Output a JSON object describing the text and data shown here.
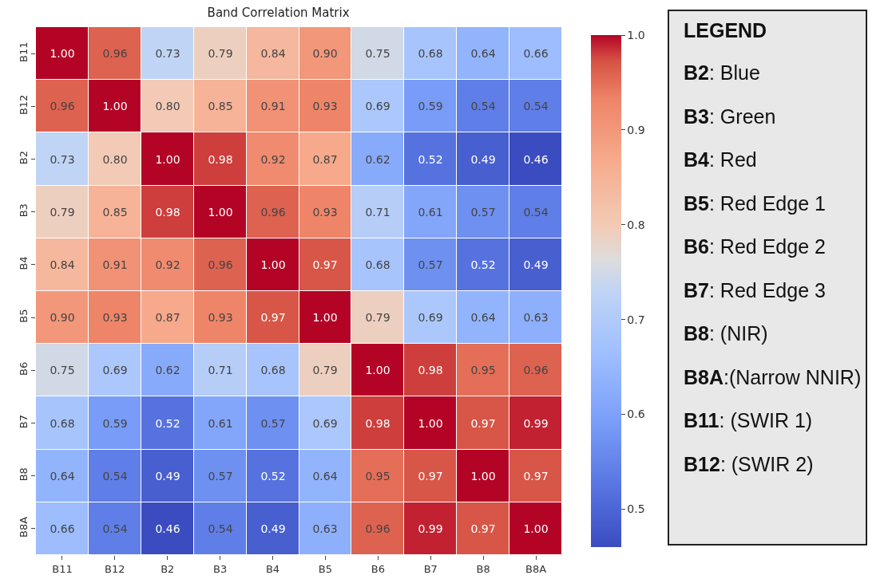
{
  "chart_data": [
    {
      "type": "heatmap",
      "title": "Band Correlation Matrix",
      "categories": [
        "B11",
        "B12",
        "B2",
        "B3",
        "B4",
        "B5",
        "B6",
        "B7",
        "B8",
        "B8A"
      ],
      "y_categories": [
        "B11",
        "B12",
        "B2",
        "B3",
        "B4",
        "B5",
        "B6",
        "B7",
        "B8",
        "B8A"
      ],
      "cells": [
        [
          1.0,
          0.96,
          0.73,
          0.79,
          0.84,
          0.9,
          0.75,
          0.68,
          0.64,
          0.66
        ],
        [
          0.96,
          1.0,
          0.8,
          0.85,
          0.91,
          0.93,
          0.69,
          0.59,
          0.54,
          0.54
        ],
        [
          0.73,
          0.8,
          1.0,
          0.98,
          0.92,
          0.87,
          0.62,
          0.52,
          0.49,
          0.46
        ],
        [
          0.79,
          0.85,
          0.98,
          1.0,
          0.96,
          0.93,
          0.71,
          0.61,
          0.57,
          0.54
        ],
        [
          0.84,
          0.91,
          0.92,
          0.96,
          1.0,
          0.97,
          0.68,
          0.57,
          0.52,
          0.49
        ],
        [
          0.9,
          0.93,
          0.87,
          0.93,
          0.97,
          1.0,
          0.79,
          0.69,
          0.64,
          0.63
        ],
        [
          0.75,
          0.69,
          0.62,
          0.71,
          0.68,
          0.79,
          1.0,
          0.98,
          0.95,
          0.96
        ],
        [
          0.68,
          0.59,
          0.52,
          0.61,
          0.57,
          0.69,
          0.98,
          1.0,
          0.97,
          0.99
        ],
        [
          0.64,
          0.54,
          0.49,
          0.57,
          0.52,
          0.64,
          0.95,
          0.97,
          1.0,
          0.97
        ],
        [
          0.66,
          0.54,
          0.46,
          0.54,
          0.49,
          0.63,
          0.96,
          0.99,
          0.97,
          1.0
        ]
      ],
      "cell_labels": [
        [
          "1.00",
          "0.96",
          "0.73",
          "0.79",
          "0.84",
          "0.90",
          "0.75",
          "0.68",
          "0.64",
          "0.66"
        ],
        [
          "0.96",
          "1.00",
          "0.80",
          "0.85",
          "0.91",
          "0.93",
          "0.69",
          "0.59",
          "0.54",
          "0.54"
        ],
        [
          "0.73",
          "0.80",
          "1.00",
          "0.98",
          "0.92",
          "0.87",
          "0.62",
          "0.52",
          "0.49",
          "0.46"
        ],
        [
          "0.79",
          "0.85",
          "0.98",
          "1.00",
          "0.96",
          "0.93",
          "0.71",
          "0.61",
          "0.57",
          "0.54"
        ],
        [
          "0.84",
          "0.91",
          "0.92",
          "0.96",
          "1.00",
          "0.97",
          "0.68",
          "0.57",
          "0.52",
          "0.49"
        ],
        [
          "0.90",
          "0.93",
          "0.87",
          "0.93",
          "0.97",
          "1.00",
          "0.79",
          "0.69",
          "0.64",
          "0.63"
        ],
        [
          "0.75",
          "0.69",
          "0.62",
          "0.71",
          "0.68",
          "0.79",
          "1.00",
          "0.98",
          "0.95",
          "0.96"
        ],
        [
          "0.68",
          "0.59",
          "0.52",
          "0.61",
          "0.57",
          "0.69",
          "0.98",
          "1.00",
          "0.97",
          "0.99"
        ],
        [
          "0.64",
          "0.54",
          "0.49",
          "0.57",
          "0.52",
          "0.64",
          "0.95",
          "0.97",
          "1.00",
          "0.97"
        ],
        [
          "0.66",
          "0.54",
          "0.46",
          "0.54",
          "0.49",
          "0.63",
          "0.96",
          "0.99",
          "0.97",
          "1.00"
        ]
      ],
      "clim": [
        0.46,
        1.0
      ],
      "cticks": [
        0.5,
        0.6,
        0.7,
        0.8,
        0.9,
        {
          "value": 1.0,
          "label": "1.0"
        }
      ]
    },
    {
      "type": "other",
      "title": "LEGEND",
      "annotations": [
        "B2: Blue",
        "B3: Green",
        "B4: Red",
        "B5: Red Edge 1",
        "B6: Red Edge 2",
        "B7: Red Edge 3",
        "B8: (NIR)",
        "B8A:(Narrow NNIR)",
        "B11: (SWIR 1)",
        "B12: (SWIR 2)"
      ]
    }
  ]
}
